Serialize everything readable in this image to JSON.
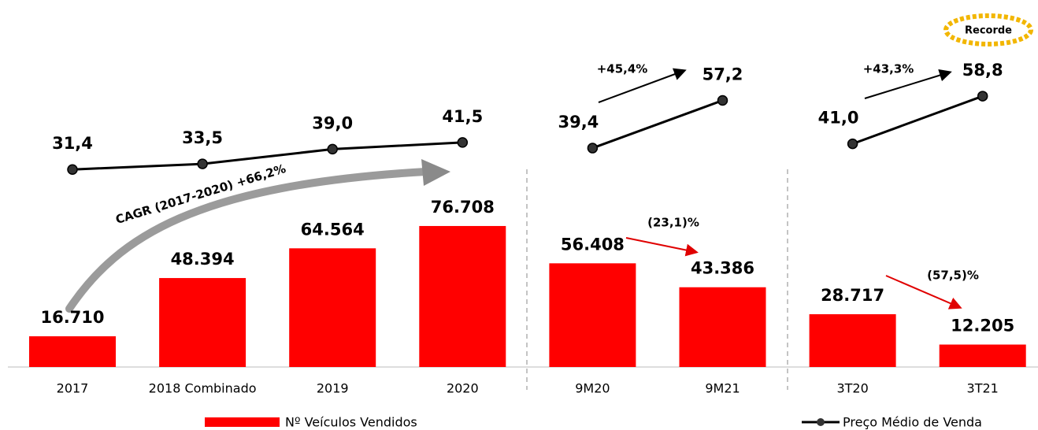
{
  "chart_data": {
    "type": "combo",
    "categories": [
      "2017",
      "2018 Combinado",
      "2019",
      "2020",
      "9M20",
      "9M21",
      "3T20",
      "3T21"
    ],
    "series": [
      {
        "name": "Nº Veículos Vendidos",
        "type": "bar",
        "color": "#ff0000",
        "values": [
          16710,
          48394,
          64564,
          76708,
          56408,
          43386,
          28717,
          12205
        ],
        "value_labels": [
          "16.710",
          "48.394",
          "64.564",
          "76.708",
          "56.408",
          "43.386",
          "28.717",
          "12.205"
        ]
      },
      {
        "name": "Preço Médio de Venda",
        "type": "line",
        "color": "#000000",
        "values": [
          31.4,
          33.5,
          39.0,
          41.5,
          39.4,
          57.2,
          41.0,
          58.8
        ],
        "value_labels": [
          "31,4",
          "33,5",
          "39,0",
          "41,5",
          "39,4",
          "57,2",
          "41,0",
          "58,8"
        ]
      }
    ],
    "annotations": [
      "CAGR (2017-2020) +66,2%",
      "+45,4%",
      "+43,3%",
      "(23,1)%",
      "(57,5)%",
      "Recorde"
    ]
  }
}
